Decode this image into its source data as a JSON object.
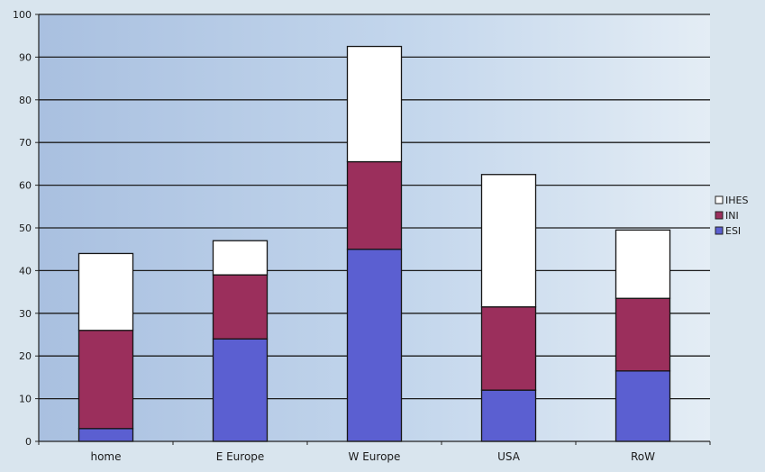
{
  "chart_data": {
    "type": "bar",
    "stacked": true,
    "categories": [
      "home",
      "E Europe",
      "W Europe",
      "USA",
      "RoW"
    ],
    "series": [
      {
        "name": "ESI",
        "values": [
          3,
          24,
          45,
          12,
          16.5
        ],
        "color": "#5b5fd1"
      },
      {
        "name": "INI",
        "values": [
          23,
          15,
          20.5,
          19.5,
          17
        ],
        "color": "#9b2f5c"
      },
      {
        "name": "IHES",
        "values": [
          18,
          8,
          27,
          31,
          16
        ],
        "color": "#ffffff"
      }
    ],
    "ylim": [
      0,
      100
    ],
    "yticks": [
      0,
      10,
      20,
      30,
      40,
      50,
      60,
      70,
      80,
      90,
      100
    ],
    "legend_position": "right",
    "legend_order": [
      "IHES",
      "INI",
      "ESI"
    ],
    "grid": true,
    "title": "",
    "xlabel": "",
    "ylabel": "",
    "colors": {
      "page_background": "#d9e5ee",
      "plot_background": "#b7cde6",
      "gridline": "#1c1c1c",
      "bar_outline": "#151515"
    }
  }
}
